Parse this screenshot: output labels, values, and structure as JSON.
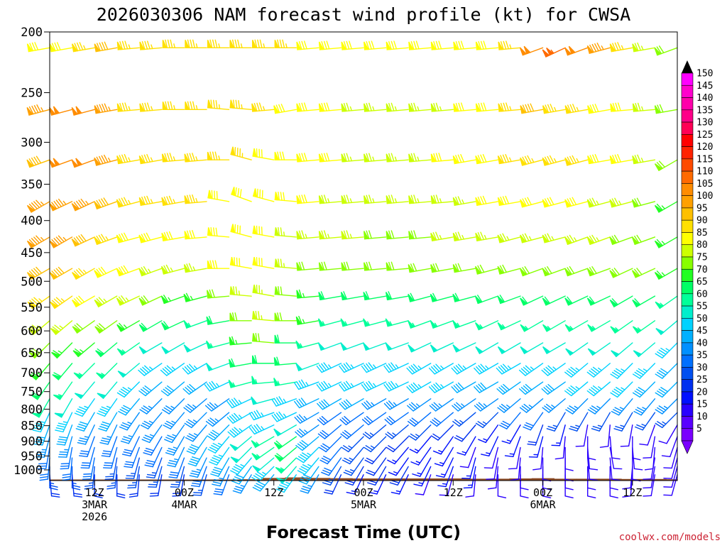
{
  "chart_data": {
    "type": "wind_barb_time_height",
    "title": "2026030306 NAM forecast wind profile (kt) for CWSA",
    "xlabel": "Forecast Time (UTC)",
    "ylabel": "",
    "credit": "coolwx.com/models",
    "y_axis": {
      "units": "hPa",
      "log_scale": true,
      "ylim": [
        200,
        1040
      ],
      "ticks": [
        "200",
        "250",
        "300",
        "350",
        "400",
        "450",
        "500",
        "550",
        "600",
        "650",
        "700",
        "750",
        "800",
        "850",
        "900",
        "950",
        "1000"
      ]
    },
    "x_axis": {
      "units": "forecast hour",
      "xlim": [
        0,
        84
      ],
      "ticks": [
        {
          "hour": 6,
          "lines": [
            "12Z",
            "3MAR",
            "2026"
          ]
        },
        {
          "hour": 18,
          "lines": [
            "00Z",
            "4MAR"
          ]
        },
        {
          "hour": 30,
          "lines": [
            "12Z"
          ]
        },
        {
          "hour": 42,
          "lines": [
            "00Z",
            "5MAR"
          ]
        },
        {
          "hour": 54,
          "lines": [
            "12Z"
          ]
        },
        {
          "hour": 66,
          "lines": [
            "00Z",
            "6MAR"
          ]
        },
        {
          "hour": 78,
          "lines": [
            "12Z"
          ]
        }
      ]
    },
    "barb_hours": [
      0,
      3,
      6,
      9,
      12,
      15,
      18,
      21,
      24,
      27,
      30,
      33,
      36,
      39,
      42,
      45,
      48,
      51,
      54,
      57,
      60,
      63,
      66,
      69,
      72,
      75,
      78,
      81,
      84
    ],
    "levels_hpa": [
      212,
      266,
      320,
      373,
      425,
      477,
      528,
      578,
      627,
      676,
      724,
      770,
      810,
      848,
      885,
      921,
      957,
      988,
      1018
    ],
    "speeds_kt": [
      [
        80,
        80,
        85,
        90,
        85,
        85,
        85,
        85,
        85,
        85,
        85,
        85,
        80,
        80,
        80,
        80,
        80,
        80,
        80,
        80,
        80,
        85,
        100,
        105,
        100,
        95,
        85,
        75,
        70
      ],
      [
        95,
        100,
        100,
        95,
        85,
        85,
        85,
        85,
        85,
        85,
        85,
        80,
        80,
        80,
        75,
        75,
        75,
        75,
        75,
        80,
        80,
        85,
        90,
        85,
        85,
        80,
        80,
        75,
        70
      ],
      [
        90,
        100,
        100,
        95,
        85,
        85,
        85,
        85,
        85,
        85,
        80,
        80,
        80,
        80,
        75,
        75,
        75,
        75,
        80,
        80,
        80,
        85,
        85,
        85,
        85,
        80,
        80,
        75,
        70
      ],
      [
        95,
        95,
        95,
        90,
        85,
        85,
        85,
        85,
        80,
        80,
        80,
        80,
        80,
        75,
        75,
        75,
        75,
        75,
        75,
        75,
        80,
        80,
        80,
        80,
        80,
        75,
        75,
        70,
        65
      ],
      [
        95,
        95,
        90,
        85,
        80,
        80,
        80,
        80,
        80,
        80,
        80,
        75,
        75,
        75,
        75,
        70,
        70,
        70,
        75,
        75,
        75,
        75,
        75,
        75,
        75,
        75,
        70,
        70,
        65
      ],
      [
        90,
        90,
        85,
        80,
        80,
        75,
        75,
        75,
        80,
        80,
        80,
        75,
        70,
        70,
        70,
        70,
        70,
        70,
        70,
        70,
        70,
        70,
        70,
        70,
        70,
        70,
        70,
        70,
        65
      ],
      [
        85,
        85,
        80,
        75,
        75,
        70,
        65,
        65,
        70,
        75,
        75,
        70,
        65,
        60,
        60,
        60,
        60,
        60,
        60,
        60,
        60,
        60,
        60,
        60,
        60,
        60,
        60,
        60,
        55
      ],
      [
        75,
        75,
        70,
        70,
        65,
        60,
        60,
        55,
        60,
        70,
        75,
        70,
        65,
        55,
        55,
        55,
        55,
        55,
        55,
        55,
        55,
        55,
        55,
        55,
        55,
        55,
        55,
        55,
        50
      ],
      [
        70,
        65,
        65,
        60,
        55,
        50,
        50,
        50,
        55,
        65,
        70,
        60,
        55,
        50,
        50,
        50,
        50,
        50,
        50,
        50,
        50,
        50,
        50,
        50,
        50,
        50,
        50,
        50,
        45
      ],
      [
        65,
        60,
        55,
        55,
        50,
        45,
        45,
        45,
        50,
        60,
        60,
        60,
        50,
        45,
        45,
        45,
        45,
        45,
        45,
        45,
        45,
        45,
        45,
        45,
        45,
        45,
        45,
        45,
        40
      ],
      [
        60,
        55,
        50,
        50,
        45,
        40,
        40,
        40,
        45,
        55,
        55,
        55,
        45,
        45,
        45,
        45,
        45,
        45,
        45,
        40,
        40,
        40,
        40,
        40,
        45,
        45,
        45,
        40,
        40
      ],
      [
        55,
        50,
        45,
        45,
        40,
        35,
        35,
        35,
        35,
        45,
        50,
        45,
        40,
        40,
        40,
        35,
        35,
        35,
        35,
        35,
        35,
        35,
        35,
        35,
        35,
        35,
        35,
        35,
        35
      ],
      [
        45,
        45,
        40,
        40,
        35,
        35,
        35,
        35,
        35,
        45,
        45,
        45,
        35,
        30,
        30,
        30,
        30,
        30,
        30,
        25,
        25,
        30,
        30,
        25,
        25,
        25,
        25,
        25,
        25
      ],
      [
        40,
        40,
        35,
        35,
        35,
        35,
        35,
        35,
        40,
        45,
        45,
        50,
        35,
        30,
        30,
        25,
        25,
        25,
        20,
        20,
        15,
        15,
        20,
        15,
        10,
        10,
        10,
        10,
        10
      ],
      [
        35,
        35,
        30,
        30,
        30,
        30,
        35,
        40,
        45,
        50,
        55,
        60,
        40,
        30,
        25,
        25,
        20,
        15,
        15,
        15,
        15,
        15,
        15,
        10,
        10,
        10,
        10,
        10,
        10
      ],
      [
        30,
        30,
        30,
        30,
        30,
        30,
        35,
        40,
        45,
        50,
        55,
        60,
        45,
        30,
        25,
        20,
        15,
        15,
        15,
        10,
        10,
        10,
        10,
        10,
        10,
        10,
        10,
        10,
        10
      ],
      [
        30,
        30,
        30,
        25,
        25,
        25,
        30,
        35,
        40,
        45,
        50,
        55,
        45,
        30,
        25,
        20,
        15,
        15,
        15,
        15,
        10,
        10,
        10,
        10,
        10,
        10,
        10,
        10,
        10
      ],
      [
        25,
        25,
        25,
        25,
        25,
        25,
        25,
        30,
        35,
        40,
        45,
        50,
        40,
        25,
        20,
        20,
        20,
        15,
        15,
        15,
        10,
        10,
        10,
        10,
        10,
        10,
        10,
        10,
        10
      ],
      [
        20,
        20,
        20,
        20,
        20,
        20,
        20,
        25,
        30,
        35,
        40,
        45,
        35,
        20,
        15,
        15,
        15,
        10,
        10,
        10,
        10,
        10,
        10,
        10,
        10,
        10,
        10,
        10,
        10
      ]
    ],
    "directions_deg": [
      [
        260,
        260,
        260,
        260,
        265,
        265,
        270,
        270,
        270,
        270,
        270,
        270,
        265,
        265,
        265,
        265,
        265,
        265,
        265,
        265,
        265,
        265,
        250,
        245,
        250,
        255,
        260,
        260,
        250
      ],
      [
        255,
        255,
        255,
        260,
        265,
        265,
        270,
        270,
        275,
        275,
        265,
        260,
        265,
        265,
        265,
        265,
        265,
        265,
        265,
        265,
        265,
        265,
        260,
        260,
        260,
        260,
        265,
        265,
        260
      ],
      [
        250,
        250,
        250,
        255,
        260,
        260,
        265,
        265,
        270,
        285,
        280,
        270,
        265,
        265,
        265,
        265,
        265,
        265,
        265,
        260,
        260,
        260,
        255,
        255,
        255,
        260,
        260,
        260,
        240
      ],
      [
        240,
        245,
        245,
        250,
        255,
        260,
        260,
        265,
        280,
        290,
        285,
        275,
        265,
        265,
        265,
        265,
        265,
        265,
        265,
        260,
        260,
        260,
        255,
        255,
        255,
        255,
        255,
        255,
        240
      ],
      [
        240,
        240,
        245,
        250,
        255,
        255,
        260,
        265,
        275,
        285,
        280,
        275,
        265,
        265,
        265,
        265,
        265,
        265,
        260,
        260,
        260,
        255,
        255,
        255,
        250,
        250,
        250,
        250,
        240
      ],
      [
        240,
        240,
        240,
        245,
        250,
        250,
        255,
        260,
        270,
        280,
        280,
        275,
        265,
        265,
        265,
        265,
        265,
        260,
        260,
        260,
        255,
        255,
        250,
        250,
        250,
        250,
        245,
        245,
        240
      ],
      [
        235,
        235,
        240,
        240,
        245,
        245,
        250,
        255,
        265,
        275,
        280,
        275,
        265,
        260,
        260,
        260,
        260,
        255,
        255,
        255,
        250,
        250,
        245,
        245,
        245,
        245,
        240,
        240,
        235
      ],
      [
        230,
        230,
        235,
        235,
        240,
        240,
        245,
        250,
        260,
        270,
        275,
        270,
        260,
        255,
        255,
        255,
        255,
        250,
        250,
        250,
        245,
        245,
        240,
        240,
        240,
        240,
        235,
        235,
        230
      ],
      [
        225,
        225,
        230,
        230,
        235,
        240,
        240,
        245,
        255,
        265,
        275,
        270,
        255,
        250,
        250,
        250,
        250,
        245,
        245,
        245,
        240,
        240,
        240,
        240,
        235,
        235,
        230,
        230,
        225
      ],
      [
        220,
        220,
        225,
        225,
        230,
        235,
        235,
        240,
        250,
        260,
        270,
        265,
        250,
        245,
        245,
        245,
        245,
        240,
        240,
        240,
        240,
        240,
        235,
        235,
        230,
        230,
        225,
        225,
        225
      ],
      [
        215,
        215,
        220,
        220,
        225,
        230,
        230,
        235,
        245,
        255,
        265,
        260,
        250,
        245,
        245,
        245,
        245,
        240,
        240,
        240,
        240,
        235,
        235,
        235,
        230,
        230,
        225,
        225,
        225
      ],
      [
        210,
        210,
        215,
        215,
        220,
        225,
        225,
        230,
        235,
        245,
        255,
        250,
        245,
        240,
        240,
        240,
        240,
        235,
        235,
        235,
        235,
        230,
        230,
        230,
        225,
        225,
        220,
        220,
        225
      ],
      [
        205,
        205,
        210,
        210,
        215,
        220,
        220,
        225,
        230,
        240,
        250,
        245,
        240,
        235,
        235,
        235,
        235,
        230,
        230,
        230,
        225,
        220,
        215,
        210,
        210,
        210,
        210,
        215,
        225
      ],
      [
        200,
        200,
        205,
        205,
        210,
        215,
        215,
        220,
        225,
        235,
        245,
        240,
        235,
        230,
        230,
        230,
        230,
        225,
        225,
        220,
        215,
        210,
        200,
        195,
        190,
        185,
        190,
        200,
        210
      ],
      [
        195,
        195,
        200,
        200,
        205,
        210,
        210,
        215,
        220,
        230,
        240,
        235,
        230,
        225,
        225,
        225,
        225,
        220,
        215,
        210,
        205,
        200,
        195,
        185,
        180,
        175,
        180,
        190,
        200
      ],
      [
        190,
        190,
        195,
        195,
        200,
        205,
        205,
        210,
        215,
        225,
        235,
        230,
        225,
        220,
        220,
        220,
        220,
        215,
        210,
        200,
        195,
        190,
        185,
        180,
        175,
        170,
        175,
        185,
        195
      ],
      [
        185,
        185,
        190,
        190,
        195,
        200,
        200,
        205,
        210,
        220,
        230,
        225,
        220,
        215,
        215,
        215,
        215,
        210,
        205,
        195,
        190,
        185,
        180,
        180,
        175,
        175,
        180,
        190,
        195
      ],
      [
        180,
        180,
        185,
        185,
        190,
        195,
        195,
        200,
        205,
        215,
        225,
        220,
        215,
        210,
        210,
        210,
        210,
        205,
        200,
        190,
        185,
        180,
        180,
        180,
        180,
        180,
        185,
        190,
        195
      ],
      [
        175,
        175,
        180,
        180,
        185,
        190,
        190,
        195,
        200,
        210,
        220,
        215,
        210,
        205,
        205,
        205,
        205,
        200,
        195,
        185,
        180,
        180,
        180,
        180,
        180,
        180,
        185,
        190,
        195
      ]
    ],
    "terrain_pressure_hpa": [
      1036,
      1036,
      1036,
      1036,
      1036,
      1036,
      1036,
      1036,
      1036,
      1035,
      1030,
      1028,
      1030,
      1031,
      1032,
      1032,
      1032,
      1032,
      1032,
      1033,
      1033,
      1032,
      1031,
      1033,
      1033,
      1033,
      1034,
      1034,
      1035
    ],
    "terrain_color": "#8b4a24",
    "colorbar": {
      "ticks": [
        "150",
        "145",
        "140",
        "135",
        "130",
        "125",
        "120",
        "115",
        "110",
        "105",
        "100",
        "95",
        "90",
        "85",
        "80",
        "75",
        "70",
        "65",
        "60",
        "55",
        "50",
        "45",
        "40",
        "35",
        "30",
        "25",
        "20",
        "15",
        "10",
        "5"
      ],
      "colors": [
        "#7a00ff",
        "#5a00ff",
        "#2a00ff",
        "#0010ff",
        "#0030f0",
        "#0050f0",
        "#0070ff",
        "#0090ff",
        "#00b0ff",
        "#00d2ff",
        "#00eecc",
        "#00ff99",
        "#00ff66",
        "#22ff22",
        "#88ff00",
        "#ccff00",
        "#ffff00",
        "#ffe000",
        "#ffc000",
        "#ffa000",
        "#ff8c00",
        "#ff6a00",
        "#ff4a00",
        "#ff2200",
        "#ff0000",
        "#ff0055",
        "#ff0088",
        "#ff00aa",
        "#ff00cc",
        "#ff00ff"
      ]
    }
  }
}
